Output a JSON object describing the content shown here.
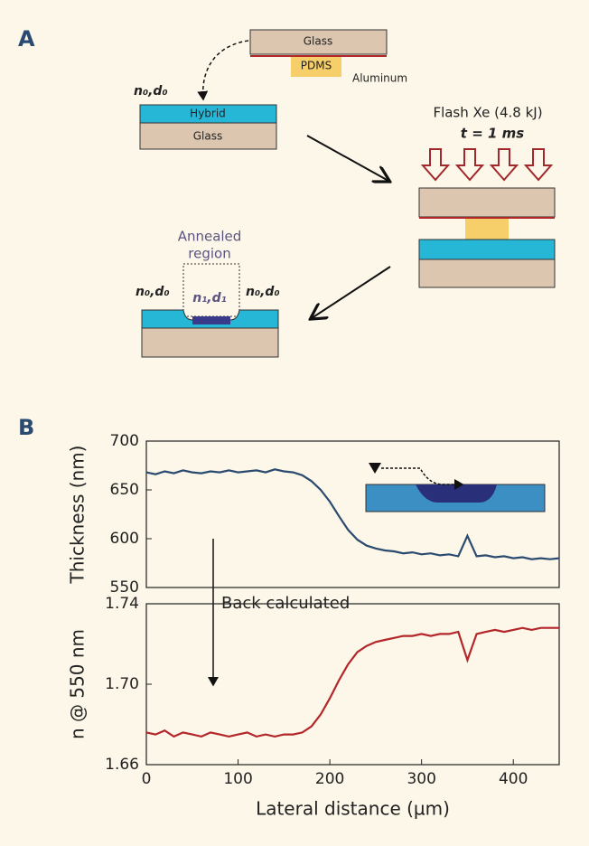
{
  "panel_labels": [
    "A",
    "B"
  ],
  "diagram": {
    "top_glass": "Glass",
    "pdms": "PDMS",
    "aluminum": "Aluminum",
    "initial_label": "n₀,d₀",
    "hybrid": "Hybrid",
    "glass": "Glass",
    "flash": "Flash Xe (4.8 kJ)",
    "time": "t = 1 ms",
    "annealed": [
      "Annealed",
      "region"
    ],
    "left_label": "n₀,d₀",
    "center_label": "n₁,d₁",
    "right_label": "n₀,d₀"
  },
  "annotation": "Back calculated",
  "chart_data": [
    {
      "type": "line",
      "ylabel": "Thickness (nm)",
      "x": [
        0,
        10,
        20,
        30,
        40,
        50,
        60,
        70,
        80,
        90,
        100,
        110,
        120,
        130,
        140,
        150,
        160,
        170,
        180,
        190,
        200,
        210,
        220,
        230,
        240,
        250,
        260,
        270,
        280,
        290,
        300,
        310,
        320,
        330,
        340,
        350,
        360,
        370,
        380,
        390,
        400,
        410,
        420,
        430,
        440,
        450
      ],
      "series": [
        {
          "color": "#2b4a6f",
          "values": [
            668,
            666,
            669,
            667,
            670,
            668,
            667,
            669,
            668,
            670,
            668,
            669,
            670,
            668,
            671,
            669,
            668,
            665,
            659,
            650,
            638,
            623,
            609,
            599,
            593,
            590,
            588,
            587,
            585,
            586,
            584,
            585,
            583,
            584,
            582,
            603,
            582,
            583,
            581,
            582,
            580,
            581,
            579,
            580,
            579,
            580
          ]
        }
      ],
      "xlim": [
        0,
        450
      ],
      "ylim": [
        550,
        700
      ],
      "yticks": [
        550,
        600,
        650,
        700
      ]
    },
    {
      "type": "line",
      "ylabel": "n @ 550 nm",
      "xlabel": "Lateral distance (µm)",
      "x": [
        0,
        10,
        20,
        30,
        40,
        50,
        60,
        70,
        80,
        90,
        100,
        110,
        120,
        130,
        140,
        150,
        160,
        170,
        180,
        190,
        200,
        210,
        220,
        230,
        240,
        250,
        260,
        270,
        280,
        290,
        300,
        310,
        320,
        330,
        340,
        350,
        360,
        370,
        380,
        390,
        400,
        410,
        420,
        430,
        440,
        450
      ],
      "series": [
        {
          "color": "#b3262a",
          "values": [
            1.676,
            1.675,
            1.677,
            1.674,
            1.676,
            1.675,
            1.674,
            1.676,
            1.675,
            1.674,
            1.675,
            1.676,
            1.674,
            1.675,
            1.674,
            1.675,
            1.675,
            1.676,
            1.679,
            1.685,
            1.693,
            1.702,
            1.71,
            1.716,
            1.719,
            1.721,
            1.722,
            1.723,
            1.724,
            1.724,
            1.725,
            1.724,
            1.725,
            1.725,
            1.726,
            1.712,
            1.725,
            1.726,
            1.727,
            1.726,
            1.727,
            1.728,
            1.727,
            1.728,
            1.728,
            1.728
          ]
        }
      ],
      "xlim": [
        0,
        450
      ],
      "xticks": [
        0,
        100,
        200,
        300,
        400
      ],
      "ylim": [
        1.66,
        1.74
      ],
      "yticks": [
        1.66,
        {
          "value": 1.7,
          "label": "1.70"
        },
        1.74
      ]
    }
  ]
}
